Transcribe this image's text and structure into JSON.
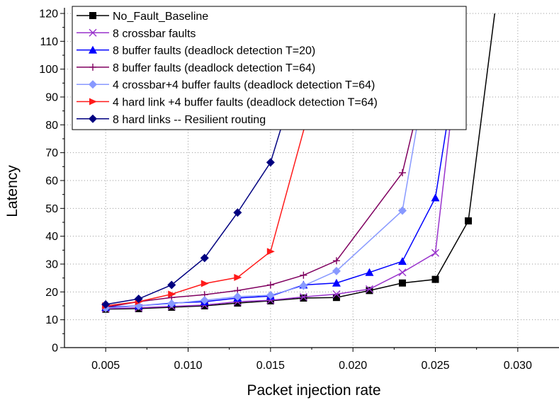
{
  "chart_data": {
    "type": "line",
    "title": "",
    "xlabel": "Packet injection rate",
    "ylabel": "Latency",
    "xlim": [
      0.0025,
      0.0325
    ],
    "ylim": [
      0,
      120
    ],
    "x_ticks": [
      0.005,
      0.01,
      0.015,
      0.02,
      0.025,
      0.03
    ],
    "x_tick_labels": [
      "0.005",
      "0.010",
      "0.015",
      "0.020",
      "0.025",
      "0.030"
    ],
    "y_ticks": [
      0,
      10,
      20,
      30,
      40,
      50,
      60,
      70,
      80,
      90,
      100,
      110,
      120
    ],
    "y_tick_labels": [
      "0",
      "10",
      "20",
      "30",
      "40",
      "50",
      "60",
      "70",
      "80",
      "90",
      "100",
      "110",
      "120"
    ],
    "grid": true,
    "legend_position": "top-left",
    "series": [
      {
        "name": "No_Fault_Baseline",
        "color": "#000000",
        "marker": "square",
        "x": [
          0.005,
          0.007,
          0.009,
          0.011,
          0.013,
          0.015,
          0.017,
          0.019,
          0.021,
          0.023,
          0.025,
          0.027,
          0.0286
        ],
        "y": [
          13.8,
          14.0,
          14.5,
          15.0,
          16.0,
          16.8,
          17.8,
          18.0,
          20.5,
          23.2,
          24.5,
          45.5,
          120
        ]
      },
      {
        "name": "8 crossbar faults",
        "color": "#9933cc",
        "marker": "x",
        "x": [
          0.005,
          0.007,
          0.009,
          0.011,
          0.013,
          0.015,
          0.017,
          0.019,
          0.021,
          0.023,
          0.025,
          0.0259
        ],
        "y": [
          14.0,
          14.3,
          14.8,
          15.3,
          16.5,
          17.0,
          18.2,
          19.2,
          21.0,
          27.0,
          34.0,
          80
        ]
      },
      {
        "name": "8 buffer faults (deadlock detection T=20)",
        "color": "#0000ff",
        "marker": "triangle",
        "x": [
          0.005,
          0.007,
          0.009,
          0.011,
          0.013,
          0.015,
          0.017,
          0.019,
          0.021,
          0.023,
          0.025,
          0.0257
        ],
        "y": [
          14.5,
          15.0,
          16.0,
          16.5,
          17.8,
          18.5,
          22.5,
          23.2,
          27.0,
          31.0,
          53.8,
          80
        ]
      },
      {
        "name": "8 buffer faults (deadlock detection T=64)",
        "color": "#800060",
        "marker": "plus",
        "x": [
          0.005,
          0.007,
          0.009,
          0.011,
          0.013,
          0.015,
          0.017,
          0.019,
          0.023,
          0.0237
        ],
        "y": [
          14.5,
          16.5,
          18.0,
          19.0,
          20.5,
          22.5,
          26.0,
          31.2,
          62.8,
          80
        ]
      },
      {
        "name": "4 crossbar+4  buffer faults (deadlock detection T=64)",
        "color": "#8899ff",
        "marker": "diamond",
        "x": [
          0.005,
          0.007,
          0.009,
          0.011,
          0.013,
          0.015,
          0.017,
          0.019,
          0.023,
          0.0239
        ],
        "y": [
          14.2,
          15.0,
          15.8,
          17.0,
          18.3,
          18.8,
          22.2,
          27.5,
          49.2,
          80
        ]
      },
      {
        "name": "4 hard link +4  buffer faults (deadlock detection T=64)",
        "color": "#ff1a1a",
        "marker": "right-triangle",
        "x": [
          0.005,
          0.007,
          0.009,
          0.011,
          0.013,
          0.015,
          0.0171
        ],
        "y": [
          15.0,
          16.5,
          19.2,
          23.0,
          25.2,
          34.5,
          80
        ]
      },
      {
        "name": "8 hard links -- Resilient routing",
        "color": "#000080",
        "marker": "diamond",
        "x": [
          0.005,
          0.007,
          0.009,
          0.011,
          0.013,
          0.015,
          0.0157
        ],
        "y": [
          15.5,
          17.5,
          22.5,
          32.2,
          48.5,
          66.5,
          80
        ]
      }
    ]
  }
}
